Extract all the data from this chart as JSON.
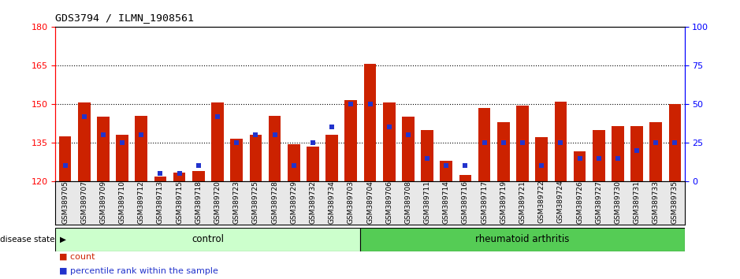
{
  "title": "GDS3794 / ILMN_1908561",
  "samples": [
    "GSM389705",
    "GSM389707",
    "GSM389709",
    "GSM389710",
    "GSM389712",
    "GSM389713",
    "GSM389715",
    "GSM389718",
    "GSM389720",
    "GSM389723",
    "GSM389725",
    "GSM389728",
    "GSM389729",
    "GSM389732",
    "GSM389734",
    "GSM389703",
    "GSM389704",
    "GSM389706",
    "GSM389708",
    "GSM389711",
    "GSM389714",
    "GSM389716",
    "GSM389717",
    "GSM389719",
    "GSM389721",
    "GSM389722",
    "GSM389724",
    "GSM389726",
    "GSM389727",
    "GSM389730",
    "GSM389731",
    "GSM389733",
    "GSM389735"
  ],
  "counts": [
    137.5,
    150.5,
    145.0,
    138.0,
    145.5,
    122.0,
    123.5,
    124.0,
    150.5,
    136.5,
    138.0,
    145.5,
    134.5,
    133.5,
    138.0,
    151.5,
    165.5,
    150.5,
    145.0,
    140.0,
    128.0,
    122.5,
    148.5,
    143.0,
    149.5,
    137.0,
    151.0,
    131.5,
    140.0,
    141.5,
    141.5,
    143.0,
    150.0
  ],
  "percentile_ranks": [
    10,
    42,
    30,
    25,
    30,
    5,
    5,
    10,
    42,
    25,
    30,
    30,
    10,
    25,
    35,
    50,
    50,
    35,
    30,
    15,
    10,
    10,
    25,
    25,
    25,
    10,
    25,
    15,
    15,
    15,
    20,
    25,
    25
  ],
  "control_count": 16,
  "ylim_left": [
    120,
    180
  ],
  "ylim_right": [
    0,
    100
  ],
  "yticks_left": [
    120,
    135,
    150,
    165,
    180
  ],
  "yticks_right": [
    0,
    25,
    50,
    75,
    100
  ],
  "bar_color": "#cc2200",
  "dot_color": "#2233cc",
  "control_color": "#ccffcc",
  "ra_color": "#55cc55",
  "grid_lines": [
    135,
    150,
    165
  ],
  "legend_count": "count",
  "legend_prank": "percentile rank within the sample"
}
